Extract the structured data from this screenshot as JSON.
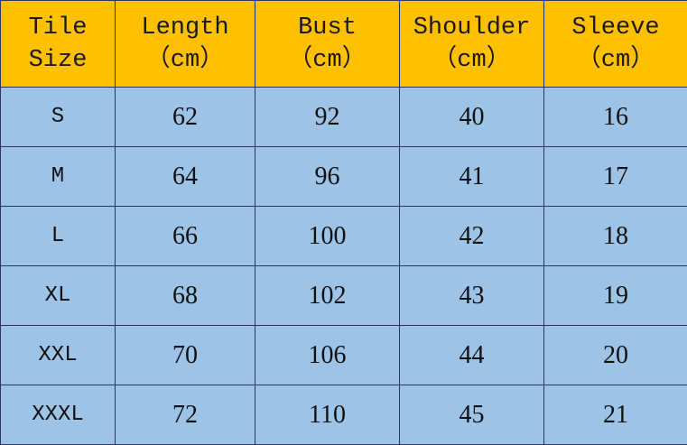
{
  "table": {
    "header": [
      [
        "Tile",
        "Size"
      ],
      [
        "Length",
        "（cm）"
      ],
      [
        "Bust",
        "（cm）"
      ],
      [
        "Shoulder",
        "（cm）"
      ],
      [
        "Sleeve",
        "（cm）"
      ]
    ],
    "rows": [
      [
        "S",
        62,
        92,
        40,
        16
      ],
      [
        "M",
        64,
        96,
        41,
        17
      ],
      [
        "L",
        66,
        100,
        42,
        18
      ],
      [
        "XL",
        68,
        102,
        43,
        19
      ],
      [
        "XXL",
        70,
        106,
        44,
        20
      ],
      [
        "XXXL",
        72,
        110,
        45,
        21
      ]
    ]
  }
}
